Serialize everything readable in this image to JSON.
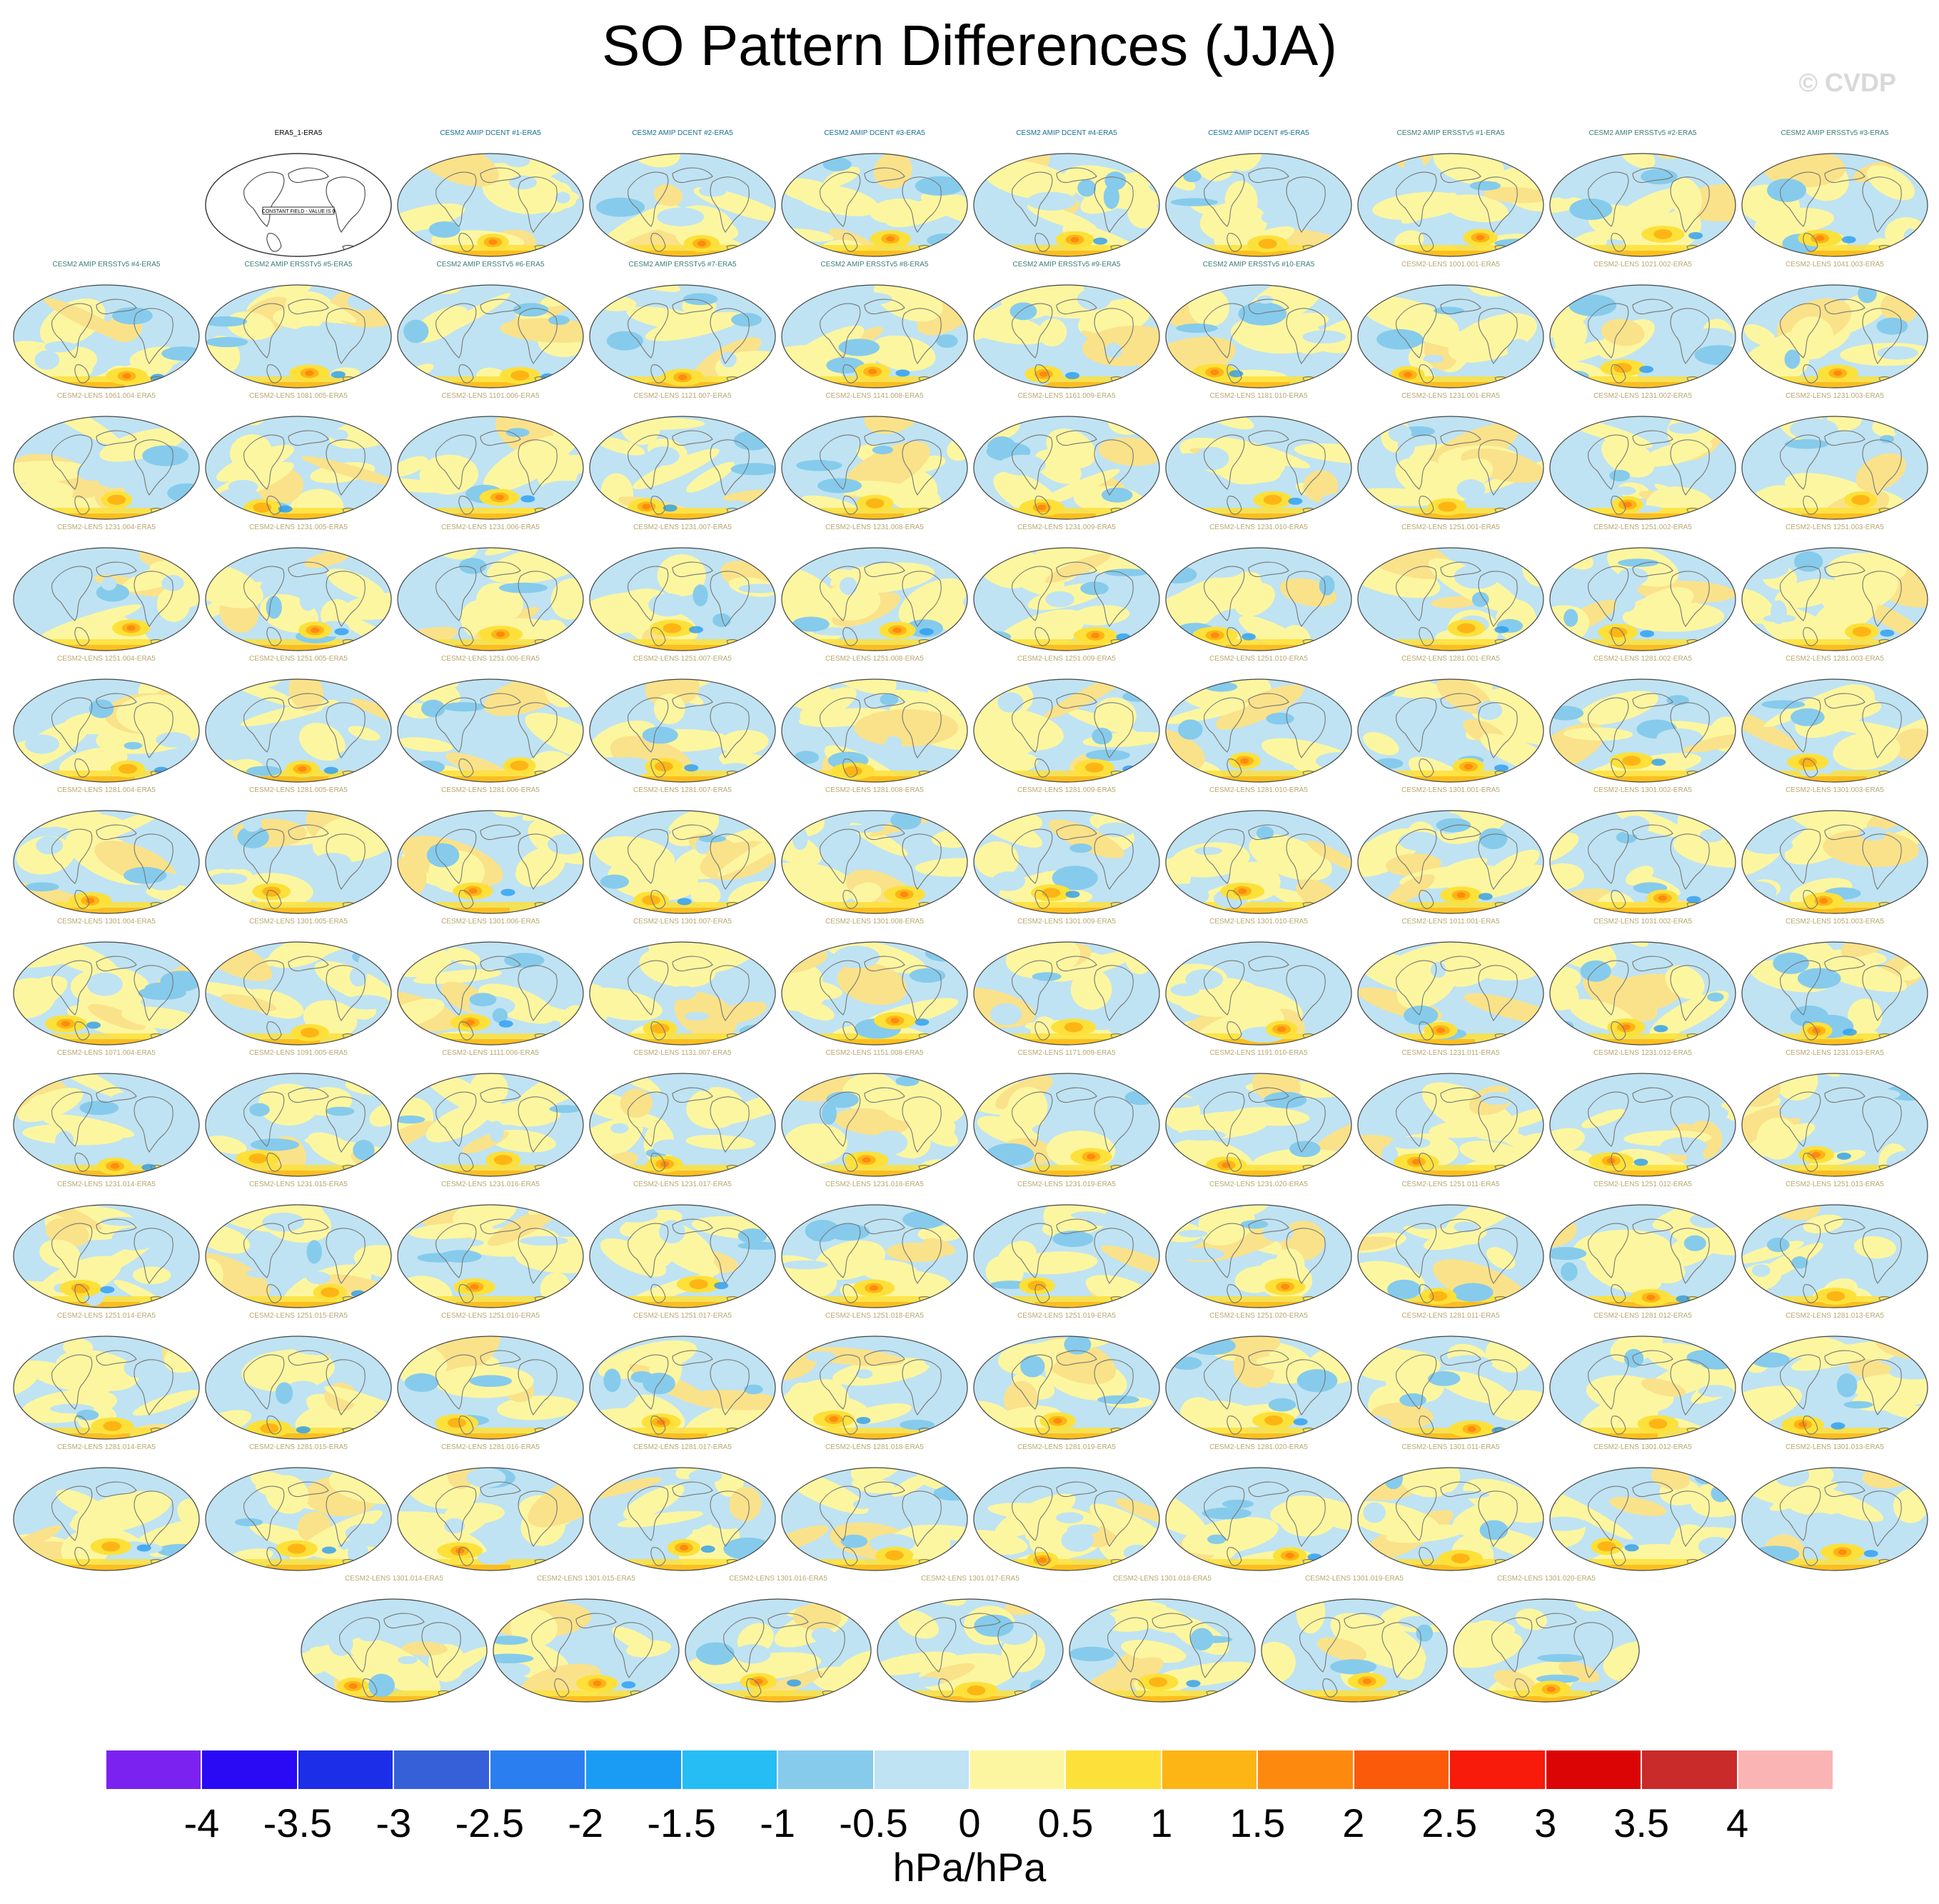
{
  "title": "SO Pattern Differences (JJA)",
  "watermark": "© CVDP",
  "panels": [
    {
      "label": "ERA5_1-ERA5",
      "color": "#000000",
      "constant": true,
      "constant_text": "CONSTANT FIELD - VALUE IS 0"
    },
    {
      "label": "CESM2 AMIP DCENT #1-ERA5",
      "color": "#1a6e96"
    },
    {
      "label": "CESM2 AMIP DCENT #2-ERA5",
      "color": "#1a6e96"
    },
    {
      "label": "CESM2 AMIP DCENT #3-ERA5",
      "color": "#1a6e96"
    },
    {
      "label": "CESM2 AMIP DCENT #4-ERA5",
      "color": "#1a6e96"
    },
    {
      "label": "CESM2 AMIP DCENT #5-ERA5",
      "color": "#1a6e96"
    },
    {
      "label": "CESM2 AMIP ERSSTv5 #1-ERA5",
      "color": "#3d7a7a"
    },
    {
      "label": "CESM2 AMIP ERSSTv5 #2-ERA5",
      "color": "#3d7a7a"
    },
    {
      "label": "CESM2 AMIP ERSSTv5 #3-ERA5",
      "color": "#3d7a7a"
    },
    {
      "label": "CESM2 AMIP ERSSTv5 #4-ERA5",
      "color": "#3d7a7a"
    },
    {
      "label": "CESM2 AMIP ERSSTv5 #5-ERA5",
      "color": "#3d7a7a"
    },
    {
      "label": "CESM2 AMIP ERSSTv5 #6-ERA5",
      "color": "#3d7a7a"
    },
    {
      "label": "CESM2 AMIP ERSSTv5 #7-ERA5",
      "color": "#3d7a7a"
    },
    {
      "label": "CESM2 AMIP ERSSTv5 #8-ERA5",
      "color": "#3d7a7a"
    },
    {
      "label": "CESM2 AMIP ERSSTv5 #9-ERA5",
      "color": "#3d7a7a"
    },
    {
      "label": "CESM2 AMIP ERSSTv5 #10-ERA5",
      "color": "#3d7a7a"
    },
    {
      "label": "CESM2-LENS 1001.001-ERA5",
      "color": "#b8a870"
    },
    {
      "label": "CESM2-LENS 1021.002-ERA5",
      "color": "#b8a870"
    },
    {
      "label": "CESM2-LENS 1041.003-ERA5",
      "color": "#b8a870"
    },
    {
      "label": "CESM2-LENS 1061.004-ERA5",
      "color": "#b8a870"
    },
    {
      "label": "CESM2-LENS 1081.005-ERA5",
      "color": "#b8a870"
    },
    {
      "label": "CESM2-LENS 1101.006-ERA5",
      "color": "#b8a870"
    },
    {
      "label": "CESM2-LENS 1121.007-ERA5",
      "color": "#b8a870"
    },
    {
      "label": "CESM2-LENS 1141.008-ERA5",
      "color": "#b8a870"
    },
    {
      "label": "CESM2-LENS 1161.009-ERA5",
      "color": "#b8a870"
    },
    {
      "label": "CESM2-LENS 1181.010-ERA5",
      "color": "#b8a870"
    },
    {
      "label": "CESM2-LENS 1231.001-ERA5",
      "color": "#b8a870"
    },
    {
      "label": "CESM2-LENS 1231.002-ERA5",
      "color": "#b8a870"
    },
    {
      "label": "CESM2-LENS 1231.003-ERA5",
      "color": "#b8a870"
    },
    {
      "label": "CESM2-LENS 1231.004-ERA5",
      "color": "#b8a870"
    },
    {
      "label": "CESM2-LENS 1231.005-ERA5",
      "color": "#b8a870"
    },
    {
      "label": "CESM2-LENS 1231.006-ERA5",
      "color": "#b8a870"
    },
    {
      "label": "CESM2-LENS 1231.007-ERA5",
      "color": "#b8a870"
    },
    {
      "label": "CESM2-LENS 1231.008-ERA5",
      "color": "#b8a870"
    },
    {
      "label": "CESM2-LENS 1231.009-ERA5",
      "color": "#b8a870"
    },
    {
      "label": "CESM2-LENS 1231.010-ERA5",
      "color": "#b8a870"
    },
    {
      "label": "CESM2-LENS 1251.001-ERA5",
      "color": "#b8a870"
    },
    {
      "label": "CESM2-LENS 1251.002-ERA5",
      "color": "#b8a870"
    },
    {
      "label": "CESM2-LENS 1251.003-ERA5",
      "color": "#b8a870"
    },
    {
      "label": "CESM2-LENS 1251.004-ERA5",
      "color": "#b8a870"
    },
    {
      "label": "CESM2-LENS 1251.005-ERA5",
      "color": "#b8a870"
    },
    {
      "label": "CESM2-LENS 1251.006-ERA5",
      "color": "#b8a870"
    },
    {
      "label": "CESM2-LENS 1251.007-ERA5",
      "color": "#b8a870"
    },
    {
      "label": "CESM2-LENS 1251.008-ERA5",
      "color": "#b8a870"
    },
    {
      "label": "CESM2-LENS 1251.009-ERA5",
      "color": "#b8a870"
    },
    {
      "label": "CESM2-LENS 1251.010-ERA5",
      "color": "#b8a870"
    },
    {
      "label": "CESM2-LENS 1281.001-ERA5",
      "color": "#b8a870"
    },
    {
      "label": "CESM2-LENS 1281.002-ERA5",
      "color": "#b8a870"
    },
    {
      "label": "CESM2-LENS 1281.003-ERA5",
      "color": "#b8a870"
    },
    {
      "label": "CESM2-LENS 1281.004-ERA5",
      "color": "#b8a870"
    },
    {
      "label": "CESM2-LENS 1281.005-ERA5",
      "color": "#b8a870"
    },
    {
      "label": "CESM2-LENS 1281.006-ERA5",
      "color": "#b8a870"
    },
    {
      "label": "CESM2-LENS 1281.007-ERA5",
      "color": "#b8a870"
    },
    {
      "label": "CESM2-LENS 1281.008-ERA5",
      "color": "#b8a870"
    },
    {
      "label": "CESM2-LENS 1281.009-ERA5",
      "color": "#b8a870"
    },
    {
      "label": "CESM2-LENS 1281.010-ERA5",
      "color": "#b8a870"
    },
    {
      "label": "CESM2-LENS 1301.001-ERA5",
      "color": "#b8a870"
    },
    {
      "label": "CESM2-LENS 1301.002-ERA5",
      "color": "#b8a870"
    },
    {
      "label": "CESM2-LENS 1301.003-ERA5",
      "color": "#b8a870"
    },
    {
      "label": "CESM2-LENS 1301.004-ERA5",
      "color": "#b8a870"
    },
    {
      "label": "CESM2-LENS 1301.005-ERA5",
      "color": "#b8a870"
    },
    {
      "label": "CESM2-LENS 1301.006-ERA5",
      "color": "#b8a870"
    },
    {
      "label": "CESM2-LENS 1301.007-ERA5",
      "color": "#b8a870"
    },
    {
      "label": "CESM2-LENS 1301.008-ERA5",
      "color": "#b8a870"
    },
    {
      "label": "CESM2-LENS 1301.009-ERA5",
      "color": "#b8a870"
    },
    {
      "label": "CESM2-LENS 1301.010-ERA5",
      "color": "#b8a870"
    },
    {
      "label": "CESM2-LENS 1011.001-ERA5",
      "color": "#b8a870"
    },
    {
      "label": "CESM2-LENS 1031.002-ERA5",
      "color": "#b8a870"
    },
    {
      "label": "CESM2-LENS 1051.003-ERA5",
      "color": "#b8a870"
    },
    {
      "label": "CESM2-LENS 1071.004-ERA5",
      "color": "#b8a870"
    },
    {
      "label": "CESM2-LENS 1091.005-ERA5",
      "color": "#b8a870"
    },
    {
      "label": "CESM2-LENS 1111.006-ERA5",
      "color": "#b8a870"
    },
    {
      "label": "CESM2-LENS 1131.007-ERA5",
      "color": "#b8a870"
    },
    {
      "label": "CESM2-LENS 1151.008-ERA5",
      "color": "#b8a870"
    },
    {
      "label": "CESM2-LENS 1171.009-ERA5",
      "color": "#b8a870"
    },
    {
      "label": "CESM2-LENS 1191.010-ERA5",
      "color": "#b8a870"
    },
    {
      "label": "CESM2-LENS 1231.011-ERA5",
      "color": "#b8a870"
    },
    {
      "label": "CESM2-LENS 1231.012-ERA5",
      "color": "#b8a870"
    },
    {
      "label": "CESM2-LENS 1231.013-ERA5",
      "color": "#b8a870"
    },
    {
      "label": "CESM2-LENS 1231.014-ERA5",
      "color": "#b8a870"
    },
    {
      "label": "CESM2-LENS 1231.015-ERA5",
      "color": "#b8a870"
    },
    {
      "label": "CESM2-LENS 1231.016-ERA5",
      "color": "#b8a870"
    },
    {
      "label": "CESM2-LENS 1231.017-ERA5",
      "color": "#b8a870"
    },
    {
      "label": "CESM2-LENS 1231.018-ERA5",
      "color": "#b8a870"
    },
    {
      "label": "CESM2-LENS 1231.019-ERA5",
      "color": "#b8a870"
    },
    {
      "label": "CESM2-LENS 1231.020-ERA5",
      "color": "#b8a870"
    },
    {
      "label": "CESM2-LENS 1251.011-ERA5",
      "color": "#b8a870"
    },
    {
      "label": "CESM2-LENS 1251.012-ERA5",
      "color": "#b8a870"
    },
    {
      "label": "CESM2-LENS 1251.013-ERA5",
      "color": "#b8a870"
    },
    {
      "label": "CESM2-LENS 1251.014-ERA5",
      "color": "#b8a870"
    },
    {
      "label": "CESM2-LENS 1251.015-ERA5",
      "color": "#b8a870"
    },
    {
      "label": "CESM2-LENS 1251.016-ERA5",
      "color": "#b8a870"
    },
    {
      "label": "CESM2-LENS 1251.017-ERA5",
      "color": "#b8a870"
    },
    {
      "label": "CESM2-LENS 1251.018-ERA5",
      "color": "#b8a870"
    },
    {
      "label": "CESM2-LENS 1251.019-ERA5",
      "color": "#b8a870"
    },
    {
      "label": "CESM2-LENS 1251.020-ERA5",
      "color": "#b8a870"
    },
    {
      "label": "CESM2-LENS 1281.011-ERA5",
      "color": "#b8a870"
    },
    {
      "label": "CESM2-LENS 1281.012-ERA5",
      "color": "#b8a870"
    },
    {
      "label": "CESM2-LENS 1281.013-ERA5",
      "color": "#b8a870"
    },
    {
      "label": "CESM2-LENS 1281.014-ERA5",
      "color": "#b8a870"
    },
    {
      "label": "CESM2-LENS 1281.015-ERA5",
      "color": "#b8a870"
    },
    {
      "label": "CESM2-LENS 1281.016-ERA5",
      "color": "#b8a870"
    },
    {
      "label": "CESM2-LENS 1281.017-ERA5",
      "color": "#b8a870"
    },
    {
      "label": "CESM2-LENS 1281.018-ERA5",
      "color": "#b8a870"
    },
    {
      "label": "CESM2-LENS 1281.019-ERA5",
      "color": "#b8a870"
    },
    {
      "label": "CESM2-LENS 1281.020-ERA5",
      "color": "#b8a870"
    },
    {
      "label": "CESM2-LENS 1301.011-ERA5",
      "color": "#b8a870"
    },
    {
      "label": "CESM2-LENS 1301.012-ERA5",
      "color": "#b8a870"
    },
    {
      "label": "CESM2-LENS 1301.013-ERA5",
      "color": "#b8a870"
    },
    {
      "label": "CESM2-LENS 1301.014-ERA5",
      "color": "#b8a870"
    },
    {
      "label": "CESM2-LENS 1301.015-ERA5",
      "color": "#b8a870"
    },
    {
      "label": "CESM2-LENS 1301.016-ERA5",
      "color": "#b8a870"
    },
    {
      "label": "CESM2-LENS 1301.017-ERA5",
      "color": "#b8a870"
    },
    {
      "label": "CESM2-LENS 1301.018-ERA5",
      "color": "#b8a870"
    },
    {
      "label": "CESM2-LENS 1301.019-ERA5",
      "color": "#b8a870"
    },
    {
      "label": "CESM2-LENS 1301.020-ERA5",
      "color": "#b8a870"
    }
  ],
  "colorbar": {
    "colors": [
      "#7b22f0",
      "#2a0af5",
      "#1c2ee8",
      "#3560d8",
      "#2a7ef0",
      "#1a9cf5",
      "#26bdf5",
      "#86cbec",
      "#bfe3f2",
      "#fdf6a0",
      "#fde13a",
      "#fdb515",
      "#fd8a0e",
      "#fa5a0a",
      "#f81a0a",
      "#dc0505",
      "#c92a2a",
      "#fbb4b4"
    ],
    "ticks": [
      "-4",
      "-3.5",
      "-3",
      "-2.5",
      "-2",
      "-1.5",
      "-1",
      "-0.5",
      "0",
      "0.5",
      "1",
      "1.5",
      "2",
      "2.5",
      "3",
      "3.5",
      "4"
    ],
    "units": "hPa/hPa"
  }
}
